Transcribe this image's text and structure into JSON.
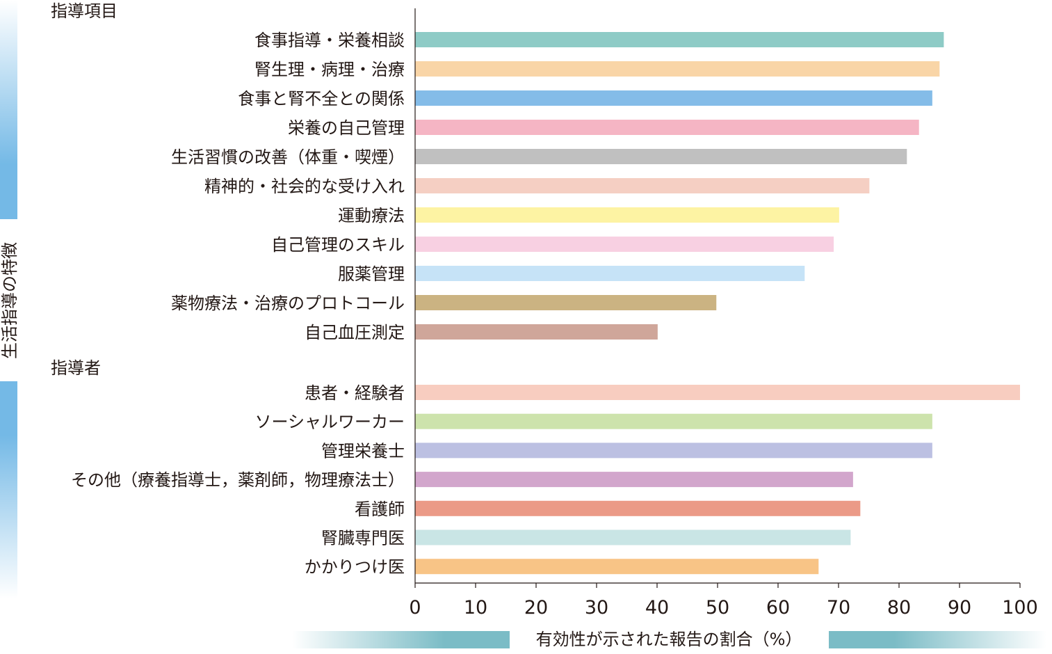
{
  "chart_data": {
    "type": "bar",
    "orientation": "horizontal",
    "side_label": "生活指導の特徴",
    "xlabel": "有効性が示された報告の割合（%）",
    "xlim": [
      0,
      100
    ],
    "xticks": [
      0,
      10,
      20,
      30,
      40,
      50,
      60,
      70,
      80,
      90,
      100
    ],
    "grid": false,
    "groups": [
      {
        "title": "指導項目",
        "categories": [
          "食事指導・栄養相談",
          "腎生理・病理・治療",
          "食事と腎不全との関係",
          "栄養の自己管理",
          "生活習慣の改善（体重・喫煙）",
          "精神的・社会的な受け入れ",
          "運動療法",
          "自己管理のスキル",
          "服薬管理",
          "薬物療法・治療のプロトコール",
          "自己血圧測定"
        ],
        "values": [
          87.4,
          86.7,
          85.5,
          83.3,
          81.3,
          75.1,
          70.1,
          69.2,
          64.4,
          49.8,
          40.1
        ],
        "colors": [
          "#8ecbc6",
          "#f9d5a7",
          "#84bce8",
          "#f5b5c4",
          "#c0c0c0",
          "#f5cfc3",
          "#fdf3a3",
          "#f8d0e2",
          "#c6e3f7",
          "#cbb382",
          "#cfa69a"
        ]
      },
      {
        "title": "指導者",
        "categories": [
          "患者・経験者",
          "ソーシャルワーカー",
          "管理栄養士",
          "その他（療養指導士，薬剤師，物理療法士）",
          "看護師",
          "腎臓専門医",
          "かかりつけ医"
        ],
        "values": [
          100,
          85.5,
          85.5,
          72.4,
          73.6,
          72.0,
          66.7
        ],
        "colors": [
          "#f8cdc0",
          "#cde3ac",
          "#bcc0e2",
          "#d2a6cc",
          "#eb9a87",
          "#c9e5e5",
          "#f8c486"
        ]
      }
    ],
    "accent_colors": {
      "side_band": "#74b9e6",
      "axis_band": "#7bbcc6"
    }
  }
}
